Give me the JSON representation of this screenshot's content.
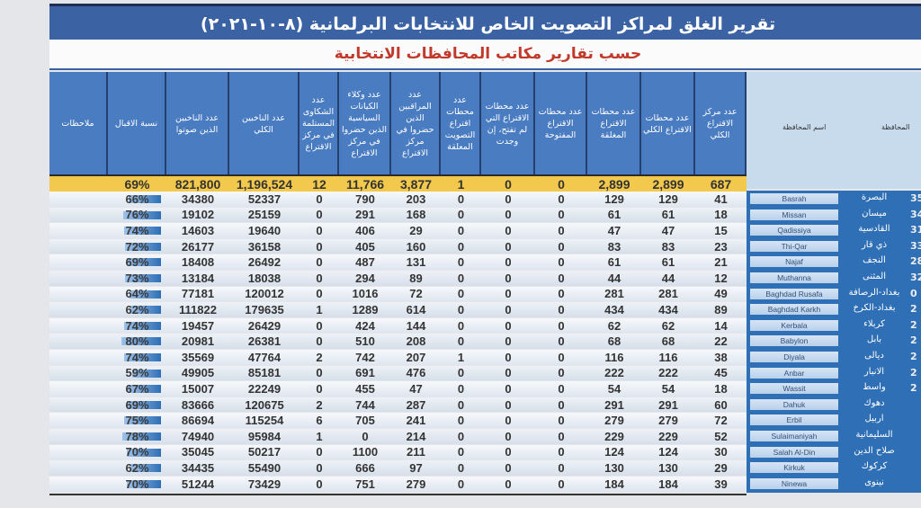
{
  "title": "تقرير الغلق لمراكز التصويت الخاص للانتخابات البرلمانية (٨-١٠-٢٠٢١)",
  "subtitle": "حسب تقارير مكاتب المحافظات الانتخابية",
  "headers": {
    "notes": "ملاحظات",
    "turnout": "نسبة الاقبال",
    "voted": "عدد الناخبين الذين صوتوا",
    "total_voters": "عدد الناخبين الكلي",
    "complaints": "عدد الشكاوى المستلمة في مركز الاقتراع",
    "agents": "عدد وكلاء الكيانات السياسية الذين حضروا في مركز الاقتراع",
    "observers": "عدد المراقبين الذين حضروا في مركز الاقتراع",
    "closed_special": "عدد محطات اقتراع التصويت المعلقة",
    "not_opened": "عدد محطات الاقتراع التي لم تفتح، إن وجدت",
    "open": "عدد محطات الاقتراع المفتوحة",
    "closed": "عدد محطات الاقتراع المغلقة",
    "total_stations": "عدد محطات الاقتراع الكلي",
    "centers": "عدد مركز الاقتراع الكلي",
    "province_name": "اسم المحافظة",
    "province": "المحافظة"
  },
  "totals": {
    "turnout": "69%",
    "voted": "821,800",
    "total_voters": "1,196,524",
    "complaints": "12",
    "agents": "11,766",
    "observers": "3,877",
    "closed_special": "1",
    "not_opened": "0",
    "open": "0",
    "closed": "2,899",
    "total_stations": "2,899",
    "centers": "687"
  },
  "rows": [
    {
      "code": "35",
      "ar": "البصرة",
      "en": "Basrah",
      "turnout": 66,
      "voted": "34380",
      "total_voters": "52337",
      "complaints": "0",
      "agents": "790",
      "observers": "203",
      "closed_special": "0",
      "not_opened": "0",
      "open": "0",
      "closed": "129",
      "total_stations": "129",
      "centers": "41"
    },
    {
      "code": "34",
      "ar": "ميسان",
      "en": "Missan",
      "turnout": 76,
      "voted": "19102",
      "total_voters": "25159",
      "complaints": "0",
      "agents": "291",
      "observers": "168",
      "closed_special": "0",
      "not_opened": "0",
      "open": "0",
      "closed": "61",
      "total_stations": "61",
      "centers": "18"
    },
    {
      "code": "31",
      "ar": "القادسية",
      "en": "Qadissiya",
      "turnout": 74,
      "voted": "14603",
      "total_voters": "19640",
      "complaints": "0",
      "agents": "406",
      "observers": "29",
      "closed_special": "0",
      "not_opened": "0",
      "open": "0",
      "closed": "47",
      "total_stations": "47",
      "centers": "15"
    },
    {
      "code": "33",
      "ar": "ذي قار",
      "en": "Thi-Qar",
      "turnout": 72,
      "voted": "26177",
      "total_voters": "36158",
      "complaints": "0",
      "agents": "405",
      "observers": "160",
      "closed_special": "0",
      "not_opened": "0",
      "open": "0",
      "closed": "83",
      "total_stations": "83",
      "centers": "23"
    },
    {
      "code": "28",
      "ar": "النجف",
      "en": "Najaf",
      "turnout": 69,
      "voted": "18408",
      "total_voters": "26492",
      "complaints": "0",
      "agents": "487",
      "observers": "131",
      "closed_special": "0",
      "not_opened": "0",
      "open": "0",
      "closed": "61",
      "total_stations": "61",
      "centers": "21"
    },
    {
      "code": "32",
      "ar": "المثنى",
      "en": "Muthanna",
      "turnout": 73,
      "voted": "13184",
      "total_voters": "18038",
      "complaints": "0",
      "agents": "294",
      "observers": "89",
      "closed_special": "0",
      "not_opened": "0",
      "open": "0",
      "closed": "44",
      "total_stations": "44",
      "centers": "12"
    },
    {
      "code": "0",
      "ar": "بغداد-الرصافة",
      "en": "Baghdad Rusafa",
      "turnout": 64,
      "voted": "77181",
      "total_voters": "120012",
      "complaints": "0",
      "agents": "1016",
      "observers": "72",
      "closed_special": "0",
      "not_opened": "0",
      "open": "0",
      "closed": "281",
      "total_stations": "281",
      "centers": "49"
    },
    {
      "code": "2",
      "ar": "بغداد-الكرخ",
      "en": "Baghdad Karkh",
      "turnout": 62,
      "voted": "111822",
      "total_voters": "179635",
      "complaints": "1",
      "agents": "1289",
      "observers": "614",
      "closed_special": "0",
      "not_opened": "0",
      "open": "0",
      "closed": "434",
      "total_stations": "434",
      "centers": "89"
    },
    {
      "code": "2",
      "ar": "كربلاء",
      "en": "Kerbala",
      "turnout": 74,
      "voted": "19457",
      "total_voters": "26429",
      "complaints": "0",
      "agents": "424",
      "observers": "144",
      "closed_special": "0",
      "not_opened": "0",
      "open": "0",
      "closed": "62",
      "total_stations": "62",
      "centers": "14"
    },
    {
      "code": "2",
      "ar": "بابل",
      "en": "Babylon",
      "turnout": 80,
      "voted": "20981",
      "total_voters": "26381",
      "complaints": "0",
      "agents": "510",
      "observers": "208",
      "closed_special": "0",
      "not_opened": "0",
      "open": "0",
      "closed": "68",
      "total_stations": "68",
      "centers": "22"
    },
    {
      "code": "2",
      "ar": "ديالى",
      "en": "Diyala",
      "turnout": 74,
      "voted": "35569",
      "total_voters": "47764",
      "complaints": "2",
      "agents": "742",
      "observers": "207",
      "closed_special": "1",
      "not_opened": "0",
      "open": "0",
      "closed": "116",
      "total_stations": "116",
      "centers": "38"
    },
    {
      "code": "2",
      "ar": "الانبار",
      "en": "Anbar",
      "turnout": 59,
      "voted": "49905",
      "total_voters": "85181",
      "complaints": "0",
      "agents": "691",
      "observers": "476",
      "closed_special": "0",
      "not_opened": "0",
      "open": "0",
      "closed": "222",
      "total_stations": "222",
      "centers": "45"
    },
    {
      "code": "2",
      "ar": "واسط",
      "en": "Wassit",
      "turnout": 67,
      "voted": "15007",
      "total_voters": "22249",
      "complaints": "0",
      "agents": "455",
      "observers": "47",
      "closed_special": "0",
      "not_opened": "0",
      "open": "0",
      "closed": "54",
      "total_stations": "54",
      "centers": "18"
    },
    {
      "code": "",
      "ar": "دهوك",
      "en": "Dahuk",
      "turnout": 69,
      "voted": "83666",
      "total_voters": "120675",
      "complaints": "2",
      "agents": "744",
      "observers": "287",
      "closed_special": "0",
      "not_opened": "0",
      "open": "0",
      "closed": "291",
      "total_stations": "291",
      "centers": "60"
    },
    {
      "code": "",
      "ar": "اربيل",
      "en": "Erbil",
      "turnout": 75,
      "voted": "86694",
      "total_voters": "115254",
      "complaints": "6",
      "agents": "705",
      "observers": "241",
      "closed_special": "0",
      "not_opened": "0",
      "open": "0",
      "closed": "279",
      "total_stations": "279",
      "centers": "72"
    },
    {
      "code": "",
      "ar": "السليمانية",
      "en": "Sulaimaniyah",
      "turnout": 78,
      "voted": "74940",
      "total_voters": "95984",
      "complaints": "1",
      "agents": "0",
      "observers": "214",
      "closed_special": "0",
      "not_opened": "0",
      "open": "0",
      "closed": "229",
      "total_stations": "229",
      "centers": "52"
    },
    {
      "code": "",
      "ar": "صلاح الدين",
      "en": "Salah Al-Din",
      "turnout": 70,
      "voted": "35045",
      "total_voters": "50217",
      "complaints": "0",
      "agents": "1100",
      "observers": "211",
      "closed_special": "0",
      "not_opened": "0",
      "open": "0",
      "closed": "124",
      "total_stations": "124",
      "centers": "30"
    },
    {
      "code": "",
      "ar": "كركوك",
      "en": "Kirkuk",
      "turnout": 62,
      "voted": "34435",
      "total_voters": "55490",
      "complaints": "0",
      "agents": "666",
      "observers": "97",
      "closed_special": "0",
      "not_opened": "0",
      "open": "0",
      "closed": "130",
      "total_stations": "130",
      "centers": "29"
    },
    {
      "code": "",
      "ar": "نينوى",
      "en": "Ninewa",
      "turnout": 70,
      "voted": "51244",
      "total_voters": "73429",
      "complaints": "0",
      "agents": "751",
      "observers": "279",
      "closed_special": "0",
      "not_opened": "0",
      "open": "0",
      "closed": "184",
      "total_stations": "184",
      "centers": "39"
    }
  ],
  "colors": {
    "header": "#4a7cc2",
    "title_bar": "#3b62a3",
    "total_row": "#f2c94c",
    "subtitle_text": "#c0392b",
    "province_cells": "#2f6fb5"
  }
}
